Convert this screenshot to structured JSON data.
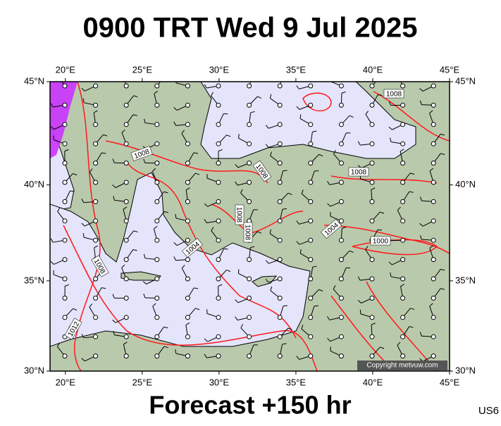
{
  "title": "0900 TRT Wed 9 Jul 2025",
  "subtitle": "Forecast +150 hr",
  "code": "US6",
  "copyright": "Copyright metvuw.com",
  "map": {
    "lon_range": [
      19,
      45
    ],
    "lat_range": [
      30,
      45
    ],
    "lon_ticks": [
      {
        "value": 20,
        "label": "20°E"
      },
      {
        "value": 25,
        "label": "25°E"
      },
      {
        "value": 30,
        "label": "30°E"
      },
      {
        "value": 35,
        "label": "35°E"
      },
      {
        "value": 40,
        "label": "40°E"
      },
      {
        "value": 45,
        "label": "45°E"
      }
    ],
    "lat_ticks": [
      {
        "value": 30,
        "label": "30°N"
      },
      {
        "value": 35,
        "label": "35°N"
      },
      {
        "value": 40,
        "label": "40°N"
      },
      {
        "value": 45,
        "label": "45°N"
      }
    ],
    "contour_labels": [
      "1008",
      "1008",
      "1008",
      "1008",
      "1008",
      "1004",
      "1004",
      "1000",
      "1008",
      "1012",
      "1008"
    ]
  }
}
